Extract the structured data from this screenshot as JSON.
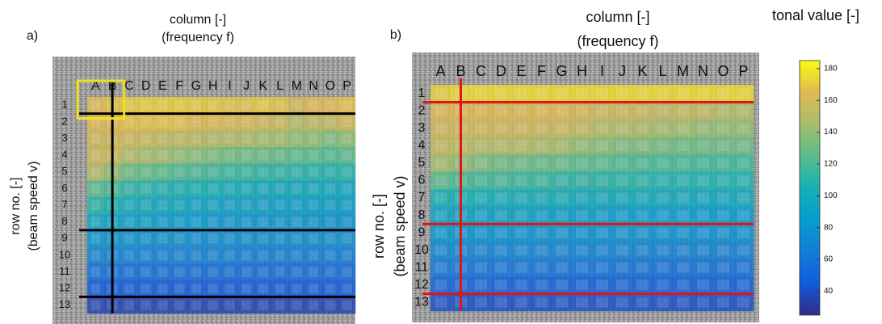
{
  "chart_data": [
    {
      "type": "heatmap",
      "panel": "a)",
      "x_label": [
        "column [-]",
        "(frequency f)"
      ],
      "y_label": [
        "row no. [-]",
        "(beam speed v)"
      ],
      "columns": [
        "A",
        "B",
        "C",
        "D",
        "E",
        "F",
        "G",
        "H",
        "I",
        "J",
        "K",
        "L",
        "M",
        "N",
        "O",
        "P"
      ],
      "rows": [
        1,
        2,
        3,
        4,
        5,
        6,
        7,
        8,
        9,
        10,
        11,
        12,
        13
      ],
      "values": [
        [
          165,
          168,
          170,
          172,
          172,
          172,
          170,
          170,
          168,
          168,
          170,
          168,
          160,
          165,
          165,
          168
        ],
        [
          165,
          165,
          168,
          168,
          168,
          168,
          165,
          165,
          163,
          163,
          160,
          158,
          150,
          155,
          155,
          160
        ],
        [
          160,
          160,
          160,
          158,
          155,
          155,
          152,
          150,
          150,
          148,
          145,
          145,
          140,
          140,
          135,
          140
        ],
        [
          158,
          158,
          150,
          145,
          145,
          140,
          138,
          135,
          132,
          130,
          130,
          128,
          125,
          125,
          122,
          125
        ],
        [
          150,
          140,
          130,
          128,
          125,
          122,
          120,
          118,
          115,
          115,
          112,
          112,
          110,
          110,
          108,
          110
        ],
        [
          125,
          120,
          112,
          110,
          108,
          105,
          105,
          102,
          100,
          100,
          98,
          98,
          96,
          96,
          95,
          95
        ],
        [
          110,
          105,
          100,
          98,
          95,
          95,
          92,
          92,
          90,
          90,
          90,
          88,
          88,
          88,
          88,
          88
        ],
        [
          95,
          92,
          90,
          88,
          86,
          85,
          85,
          84,
          83,
          82,
          82,
          82,
          82,
          80,
          80,
          80
        ],
        [
          82,
          80,
          80,
          78,
          78,
          78,
          76,
          76,
          76,
          76,
          75,
          75,
          75,
          75,
          75,
          75
        ],
        [
          70,
          70,
          68,
          68,
          68,
          68,
          68,
          68,
          68,
          66,
          66,
          66,
          66,
          66,
          66,
          66
        ],
        [
          58,
          58,
          56,
          56,
          56,
          56,
          55,
          55,
          55,
          55,
          55,
          55,
          55,
          55,
          55,
          55
        ],
        [
          45,
          45,
          45,
          45,
          44,
          44,
          44,
          44,
          44,
          44,
          44,
          44,
          44,
          44,
          44,
          44
        ],
        [
          35,
          35,
          35,
          35,
          35,
          35,
          35,
          35,
          35,
          35,
          35,
          35,
          35,
          35,
          35,
          35
        ]
      ]
    },
    {
      "type": "heatmap",
      "panel": "b)",
      "x_label": [
        "column [-]",
        "(frequency f)"
      ],
      "y_label": [
        "row no. [-]",
        "(beam speed v)"
      ],
      "columns": [
        "A",
        "B",
        "C",
        "D",
        "E",
        "F",
        "G",
        "H",
        "I",
        "J",
        "K",
        "L",
        "M",
        "N",
        "O",
        "P"
      ],
      "rows": [
        1,
        2,
        3,
        4,
        5,
        6,
        7,
        8,
        9,
        10,
        11,
        12,
        13
      ],
      "values": [
        [
          172,
          175,
          175,
          175,
          175,
          175,
          175,
          175,
          175,
          175,
          175,
          175,
          175,
          175,
          175,
          175
        ],
        [
          165,
          165,
          165,
          165,
          165,
          165,
          165,
          162,
          160,
          160,
          158,
          155,
          155,
          155,
          150,
          150
        ],
        [
          160,
          160,
          160,
          160,
          160,
          158,
          158,
          155,
          150,
          150,
          148,
          145,
          145,
          140,
          140,
          140
        ],
        [
          155,
          155,
          150,
          150,
          150,
          148,
          145,
          140,
          138,
          135,
          135,
          132,
          130,
          130,
          130,
          130
        ],
        [
          145,
          140,
          135,
          130,
          130,
          128,
          128,
          125,
          125,
          122,
          120,
          120,
          120,
          118,
          118,
          118
        ],
        [
          125,
          120,
          118,
          118,
          115,
          115,
          112,
          112,
          110,
          110,
          110,
          108,
          108,
          108,
          108,
          108
        ],
        [
          105,
          105,
          102,
          102,
          100,
          100,
          100,
          98,
          98,
          98,
          97,
          97,
          97,
          96,
          96,
          96
        ],
        [
          92,
          92,
          90,
          90,
          90,
          88,
          88,
          88,
          87,
          87,
          86,
          86,
          86,
          85,
          85,
          85
        ],
        [
          82,
          82,
          80,
          80,
          80,
          80,
          78,
          78,
          78,
          78,
          78,
          78,
          77,
          77,
          77,
          77
        ],
        [
          72,
          72,
          70,
          70,
          70,
          70,
          70,
          70,
          70,
          70,
          68,
          68,
          68,
          68,
          68,
          68
        ],
        [
          62,
          62,
          60,
          60,
          60,
          60,
          60,
          60,
          60,
          58,
          58,
          58,
          58,
          58,
          58,
          58
        ],
        [
          50,
          50,
          50,
          48,
          48,
          48,
          48,
          48,
          48,
          48,
          48,
          48,
          48,
          48,
          48,
          48
        ],
        [
          40,
          40,
          40,
          40,
          40,
          40,
          40,
          40,
          40,
          40,
          40,
          40,
          40,
          40,
          40,
          40
        ]
      ],
      "colorbar_title": "tonal value [-]",
      "clim": [
        25,
        185
      ],
      "cticks": [
        40,
        60,
        80,
        100,
        120,
        140,
        160,
        180
      ]
    }
  ]
}
